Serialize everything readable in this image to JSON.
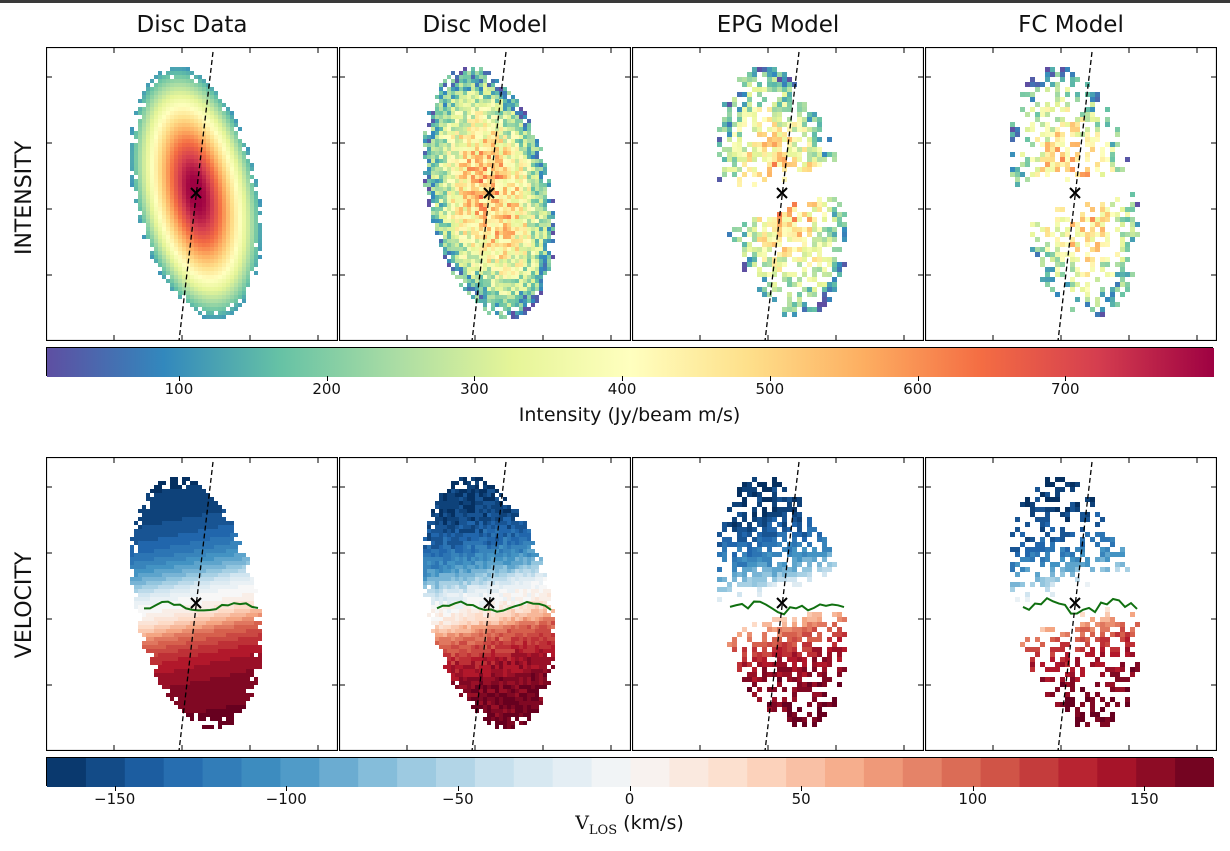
{
  "chart_data": {
    "type": "heatmap",
    "column_titles": [
      "Disc Data",
      "Disc Model",
      "EPG Model",
      "FC Model"
    ],
    "row_labels": [
      "INTENSITY",
      "VELOCITY"
    ],
    "intensity_colorbar": {
      "label": "Intensity (Jy/beam m/s)",
      "range": [
        10,
        800
      ],
      "ticks": [
        "100",
        "200",
        "300",
        "400",
        "500",
        "600",
        "700"
      ],
      "tick_values": [
        100,
        200,
        300,
        400,
        500,
        600,
        700
      ],
      "colormap": "Spectral_r",
      "colors": [
        "#5e4fa2",
        "#3288bd",
        "#66c2a5",
        "#abdda4",
        "#e6f598",
        "#ffffbf",
        "#fee08b",
        "#fdae61",
        "#f46d43",
        "#d53e4f",
        "#9e0142"
      ]
    },
    "velocity_colorbar": {
      "label_main": "V",
      "label_sub": "LOS",
      "label_unit": " (km/s)",
      "range": [
        -170,
        170
      ],
      "n_levels": 30,
      "ticks": [
        "−150",
        "−100",
        "−50",
        "0",
        "50",
        "100",
        "150"
      ],
      "tick_values": [
        -150,
        -100,
        -50,
        0,
        50,
        100,
        150
      ],
      "colormap": "RdBu_r",
      "colors": [
        "#053061",
        "#2166ac",
        "#4393c3",
        "#92c5de",
        "#d1e5f0",
        "#f7f7f7",
        "#fddbc7",
        "#f4a582",
        "#d6604d",
        "#b2182b",
        "#67001f"
      ]
    },
    "annotations": {
      "center_marker": "x",
      "major_axis": "dashed line",
      "systemic_contour": "green"
    }
  }
}
